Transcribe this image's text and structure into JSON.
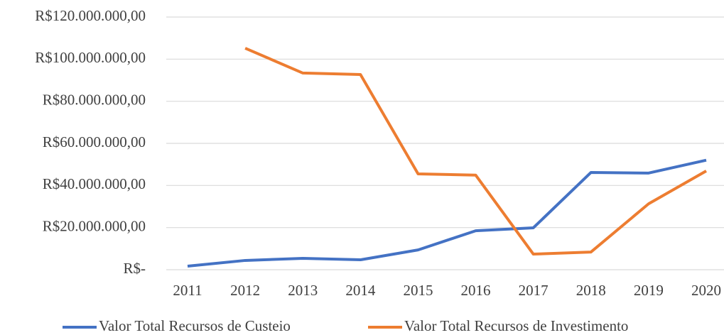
{
  "chart_data": {
    "type": "line",
    "categories": [
      "2011",
      "2012",
      "2013",
      "2014",
      "2015",
      "2016",
      "2017",
      "2018",
      "2019",
      "2020"
    ],
    "series": [
      {
        "name": "Valor Total Recursos de Custeio",
        "color": "#4472c4",
        "values": [
          1700000,
          4400000,
          5400000,
          4700000,
          9400000,
          18500000,
          19900000,
          46200000,
          45900000,
          52000000
        ]
      },
      {
        "name": "Valor Total Recursos de Investimento",
        "color": "#ed7d31",
        "values": [
          null,
          105200000,
          93400000,
          92700000,
          45500000,
          44900000,
          7400000,
          8400000,
          31300000,
          46900000
        ]
      }
    ],
    "ylim": [
      0,
      120000000
    ],
    "yticks": [
      {
        "value": 0,
        "label": "R$-"
      },
      {
        "value": 20000000,
        "label": "R$20.000.000,00"
      },
      {
        "value": 40000000,
        "label": "R$40.000.000,00"
      },
      {
        "value": 60000000,
        "label": "R$60.000.000,00"
      },
      {
        "value": 80000000,
        "label": "R$80.000.000,00"
      },
      {
        "value": 100000000,
        "label": "R$100.000.000,00"
      },
      {
        "value": 120000000,
        "label": "R$120.000.000,00"
      }
    ],
    "grid": true,
    "legend": "bottom"
  }
}
